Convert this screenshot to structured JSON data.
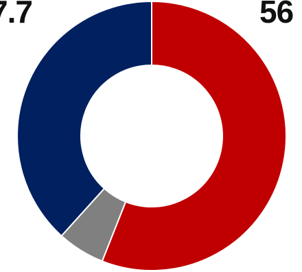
{
  "chart_data": {
    "type": "pie",
    "variant": "donut",
    "slices": [
      {
        "value": 56,
        "color": "#c00000",
        "label": "56"
      },
      {
        "value": 5.7,
        "color": "#808080",
        "label": ""
      },
      {
        "value": 38.3,
        "color": "#002060",
        "label": "7.7"
      }
    ],
    "start": "top",
    "direction": "clockwise",
    "legend": "none"
  },
  "labels": {
    "left": "7.7",
    "right": "56"
  },
  "colors": {
    "background": "#ffffff",
    "separator": "#ffffff",
    "text": "#111111"
  }
}
